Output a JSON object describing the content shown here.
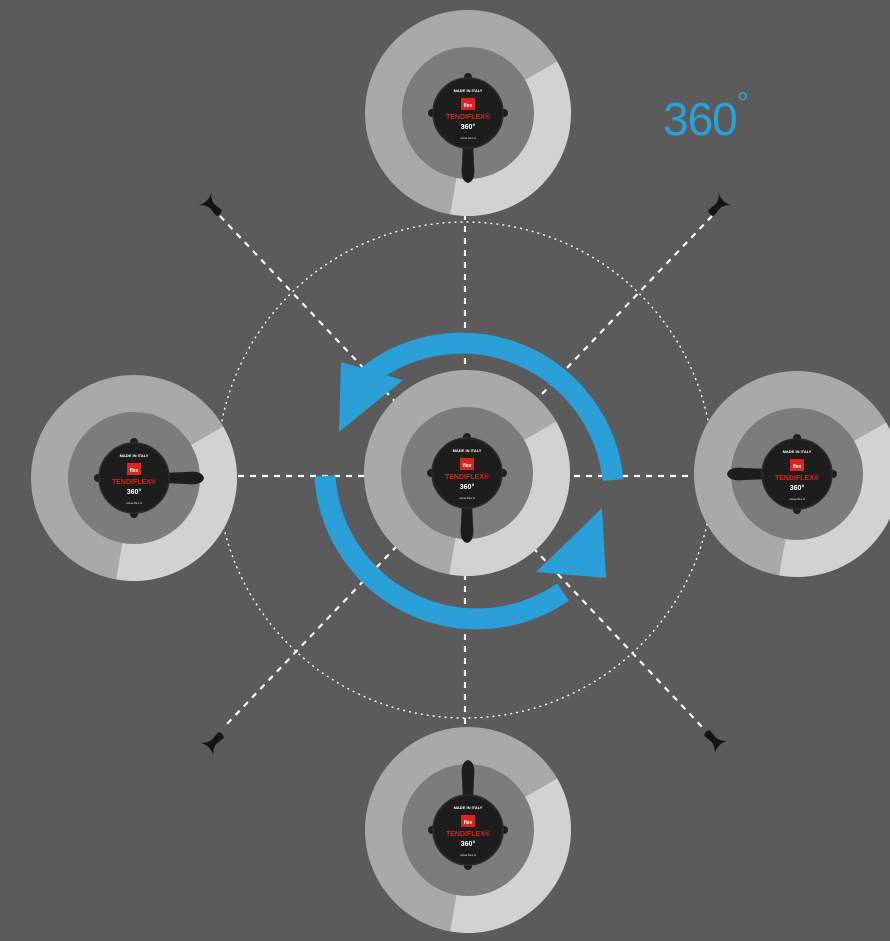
{
  "angle_label": "360",
  "degree_symbol": "°",
  "reel": {
    "brand_badge": "flex",
    "top_text": "MADE IN ITALY",
    "product_name": "TENDIFLEX",
    "product_suffix": "®",
    "rotation_text": "360°",
    "url_text": "www.flex.it"
  },
  "colors": {
    "background": "#5b5b5b",
    "accent_blue": "#2a9fd8",
    "disc_outer": "#a9a9a9",
    "disc_highlight": "#d2d2d2",
    "disc_inner": "#7c7c7c",
    "reel_body": "#1d1d1d",
    "badge_red": "#d8261d"
  }
}
